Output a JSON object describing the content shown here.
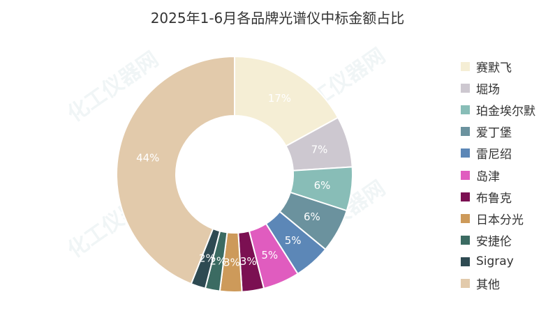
{
  "chart_data": {
    "type": "pie",
    "title": "2025年1-6月各品牌光谱仪中标金额占比",
    "donut": true,
    "legend_position": "right",
    "categories": [
      "赛默飞",
      "堀场",
      "珀金埃尔默",
      "爱丁堡",
      "雷尼绍",
      "岛津",
      "布鲁克",
      "日本分光",
      "安捷伦",
      "Sigray",
      "其他"
    ],
    "values": [
      17,
      7,
      6,
      6,
      5,
      5,
      3,
      3,
      2,
      2,
      44
    ],
    "labels": [
      "17%",
      "7%",
      "6%",
      "6%",
      "5%",
      "5%",
      "3%",
      "3%",
      "2%",
      "2%",
      "44%"
    ],
    "colors": [
      "#f5eed5",
      "#cdc8d0",
      "#88bdb7",
      "#6b929e",
      "#5c87b7",
      "#e05cbf",
      "#7b1052",
      "#cd9a5a",
      "#3b6b62",
      "#2e4a52",
      "#e2caab"
    ]
  },
  "watermark": "化工仪器网"
}
